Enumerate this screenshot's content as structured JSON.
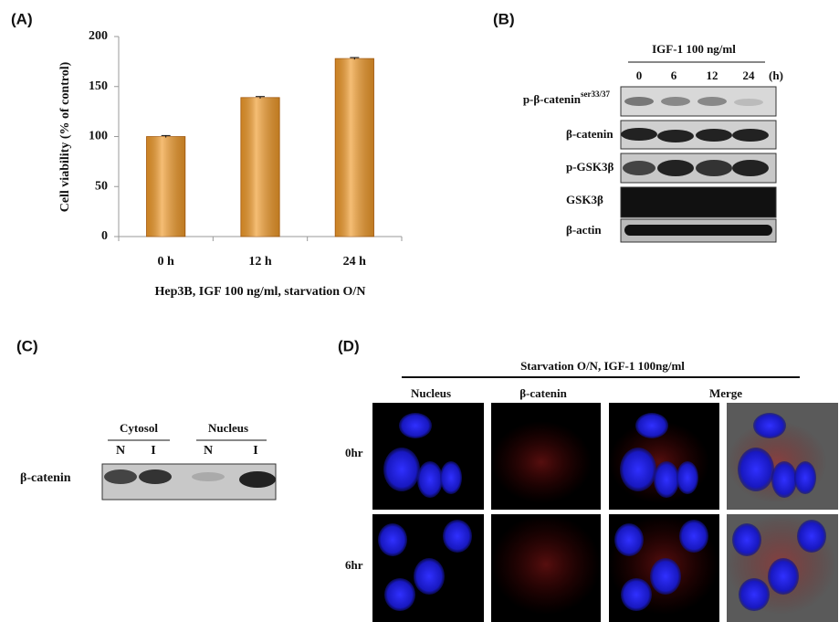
{
  "chart_data": {
    "type": "bar",
    "panel_label": "(A)",
    "categories": [
      "0 h",
      "12 h",
      "24 h"
    ],
    "values": [
      100,
      139,
      178
    ],
    "errors": [
      1,
      1,
      1
    ],
    "color": "#f09a2a",
    "y_label": "Cell viability (% of control)",
    "x_label": "Hep3B, IGF 100 ng/ml, starvation O/N",
    "ylim": [
      0,
      200
    ],
    "yticks": [
      0,
      50,
      100,
      150,
      200
    ]
  },
  "panel_b": {
    "label": "(B)",
    "treatment": "IGF-1 100 ng/ml",
    "lanes": [
      "0",
      "6",
      "12",
      "24"
    ],
    "unit": "(h)",
    "rows": [
      {
        "name": "p-β-catenin",
        "superscript": "ser33/37"
      },
      {
        "name": "β-catenin"
      },
      {
        "name": "p-GSK3β"
      },
      {
        "name": "GSK3β"
      },
      {
        "name": "β-actin"
      }
    ]
  },
  "panel_c": {
    "label": "(C)",
    "groups": [
      "Cytosol",
      "Nucleus"
    ],
    "lanes": [
      "N",
      "I",
      "N",
      "I"
    ],
    "row": "β-catenin"
  },
  "panel_d": {
    "label": "(D)",
    "title": "Starvation O/N, IGF-1 100ng/ml",
    "columns": [
      "Nucleus",
      "β-catenin",
      "Merge"
    ],
    "rows": [
      "0hr",
      "6hr"
    ]
  }
}
